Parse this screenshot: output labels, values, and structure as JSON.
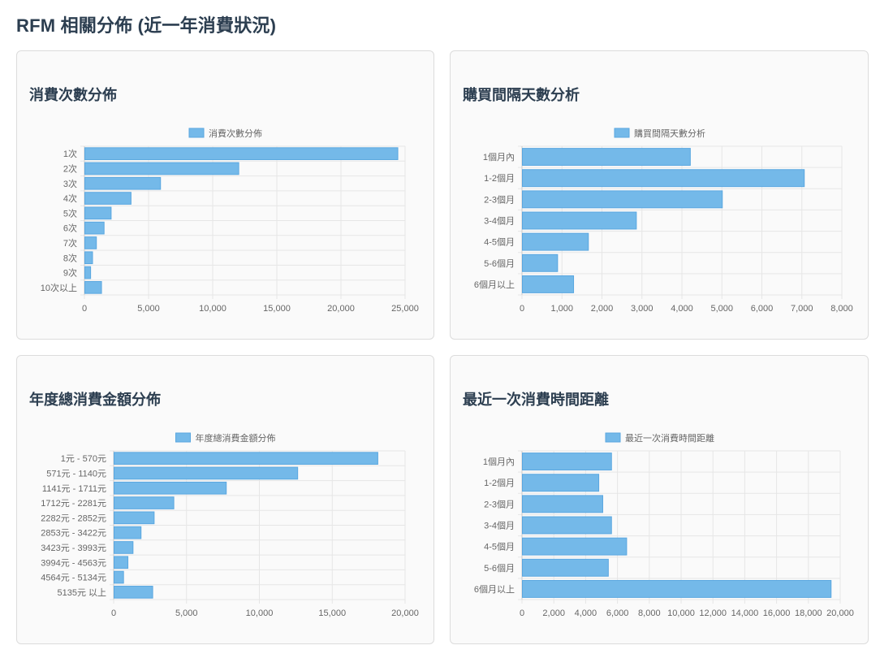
{
  "page": {
    "title": "RFM 相關分佈 (近一年消費狀況)"
  },
  "colors": {
    "bar_fill": "#74b9e9",
    "bar_stroke": "#5aa7e0",
    "grid": "#e6e6e6",
    "axis_text": "#666666"
  },
  "charts": [
    {
      "title": "消費次數分佈",
      "chart_data": {
        "type": "bar",
        "orientation": "horizontal",
        "title": "",
        "legend": "消費次數分佈",
        "legend_position": "top",
        "categories": [
          "1次",
          "2次",
          "3次",
          "4次",
          "5次",
          "6次",
          "7次",
          "8次",
          "9次",
          "10次以上"
        ],
        "series": [
          {
            "name": "消費次數分佈",
            "values": [
              24400,
              12000,
              5900,
              3600,
              2050,
              1500,
              900,
              600,
              450,
              1300
            ]
          }
        ],
        "xlim": [
          0,
          25000
        ],
        "xticks": [
          0,
          5000,
          10000,
          15000,
          20000,
          25000
        ],
        "xtick_labels": [
          "0",
          "5,000",
          "10,000",
          "15,000",
          "20,000",
          "25,000"
        ],
        "grid": true
      }
    },
    {
      "title": "購買間隔天數分析",
      "chart_data": {
        "type": "bar",
        "orientation": "horizontal",
        "title": "",
        "legend": "購買間隔天數分析",
        "legend_position": "top",
        "categories": [
          "1個月內",
          "1-2個月",
          "2-3個月",
          "3-4個月",
          "4-5個月",
          "5-6個月",
          "6個月以上"
        ],
        "series": [
          {
            "name": "購買間隔天數分析",
            "values": [
              4200,
              7050,
              5000,
              2850,
              1650,
              880,
              1280
            ]
          }
        ],
        "xlim": [
          0,
          8000
        ],
        "xticks": [
          0,
          1000,
          2000,
          3000,
          4000,
          5000,
          6000,
          7000,
          8000
        ],
        "xtick_labels": [
          "0",
          "1,000",
          "2,000",
          "3,000",
          "4,000",
          "5,000",
          "6,000",
          "7,000",
          "8,000"
        ],
        "grid": true
      }
    },
    {
      "title": "年度總消費金額分佈",
      "chart_data": {
        "type": "bar",
        "orientation": "horizontal",
        "title": "",
        "legend": "年度總消費金額分佈",
        "legend_position": "top",
        "categories": [
          "1元 - 570元",
          "571元 - 1140元",
          "1141元 - 1711元",
          "1712元 - 2281元",
          "2282元 - 2852元",
          "2853元 - 3422元",
          "3423元 - 3993元",
          "3994元 - 4563元",
          "4564元 - 5134元",
          "5135元 以上"
        ],
        "series": [
          {
            "name": "年度總消費金額分佈",
            "values": [
              18100,
              12600,
              7700,
              4100,
              2750,
              1850,
              1300,
              950,
              650,
              2650
            ]
          }
        ],
        "xlim": [
          0,
          20000
        ],
        "xticks": [
          0,
          5000,
          10000,
          15000,
          20000
        ],
        "xtick_labels": [
          "0",
          "5,000",
          "10,000",
          "15,000",
          "20,000"
        ],
        "grid": true
      }
    },
    {
      "title": "最近一次消費時間距離",
      "chart_data": {
        "type": "bar",
        "orientation": "horizontal",
        "title": "",
        "legend": "最近一次消費時間距離",
        "legend_position": "top",
        "categories": [
          "1個月內",
          "1-2個月",
          "2-3個月",
          "3-4個月",
          "4-5個月",
          "5-6個月",
          "6個月以上"
        ],
        "series": [
          {
            "name": "最近一次消費時間距離",
            "values": [
              5600,
              4800,
              5050,
              5600,
              6550,
              5400,
              19400
            ]
          }
        ],
        "xlim": [
          0,
          20000
        ],
        "xticks": [
          0,
          2000,
          4000,
          6000,
          8000,
          10000,
          12000,
          14000,
          16000,
          18000,
          20000
        ],
        "xtick_labels": [
          "0",
          "2,000",
          "4,000",
          "6,000",
          "8,000",
          "10,000",
          "12,000",
          "14,000",
          "16,000",
          "18,000",
          "20,000"
        ],
        "grid": true
      }
    }
  ]
}
